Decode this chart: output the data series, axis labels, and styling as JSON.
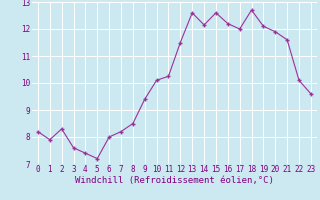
{
  "x": [
    0,
    1,
    2,
    3,
    4,
    5,
    6,
    7,
    8,
    9,
    10,
    11,
    12,
    13,
    14,
    15,
    16,
    17,
    18,
    19,
    20,
    21,
    22,
    23
  ],
  "y": [
    8.2,
    7.9,
    8.3,
    7.6,
    7.4,
    7.2,
    8.0,
    8.2,
    8.5,
    9.4,
    10.1,
    10.25,
    11.5,
    12.6,
    12.15,
    12.6,
    12.2,
    12.0,
    12.7,
    12.1,
    11.9,
    11.6,
    10.1,
    9.6
  ],
  "xlim": [
    -0.5,
    23.5
  ],
  "ylim": [
    7.0,
    13.0
  ],
  "yticks": [
    7,
    8,
    9,
    10,
    11,
    12,
    13
  ],
  "xticks": [
    0,
    1,
    2,
    3,
    4,
    5,
    6,
    7,
    8,
    9,
    10,
    11,
    12,
    13,
    14,
    15,
    16,
    17,
    18,
    19,
    20,
    21,
    22,
    23
  ],
  "xlabel": "Windchill (Refroidissement éolien,°C)",
  "line_color": "#993399",
  "marker": "+",
  "bg_color": "#cce8f0",
  "grid_color": "#ffffff",
  "tick_label_fontsize": 5.5,
  "xlabel_fontsize": 6.5
}
